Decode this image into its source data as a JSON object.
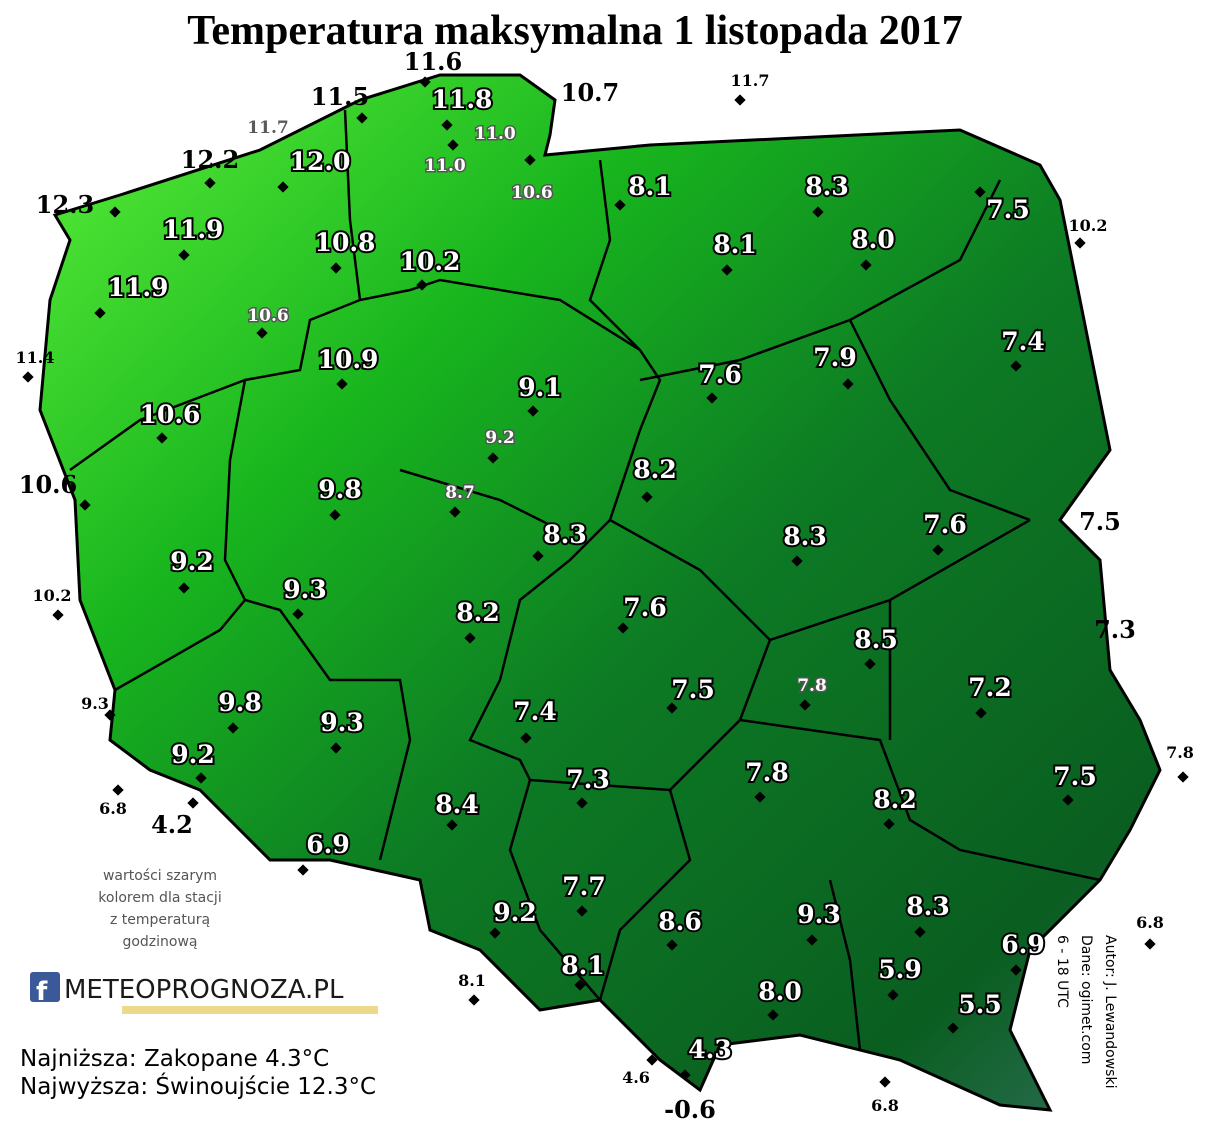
{
  "title": "Temperatura maksymalna 1 listopada 2017",
  "stations": [
    "11.6",
    "11.5",
    "10.7",
    "12.2",
    "12.3",
    "10.6",
    "7.5",
    "7.3",
    "4.2",
    "-0.6",
    "11.7",
    "10.2",
    "11.4",
    "10.2",
    "9.3",
    "6.8",
    "7.8",
    "6.8",
    "8.1",
    "4.6",
    "6.8",
    "11.7",
    "11.0",
    "11.0",
    "10.6",
    "10.6",
    "9.2",
    "8.7",
    "7.8",
    "11.8",
    "12.0",
    "11.9",
    "10.8",
    "10.2",
    "11.9",
    "10.9",
    "10.6",
    "9.8",
    "9.2",
    "9.3",
    "9.8",
    "9.3",
    "9.2",
    "6.9",
    "8.4",
    "9.2",
    "8.1",
    "8.3",
    "7.5",
    "8.1",
    "8.0",
    "7.4",
    "7.6",
    "7.9",
    "9.1",
    "8.2",
    "8.3",
    "8.3",
    "7.6",
    "8.2",
    "7.6",
    "8.5",
    "7.5",
    "7.2",
    "7.4",
    "7.3",
    "7.8",
    "8.2",
    "7.5",
    "7.7",
    "8.6",
    "9.3",
    "8.3",
    "6.9",
    "5.9",
    "8.1",
    "8.0",
    "5.5",
    "4.3"
  ],
  "note": [
    "wartości szarym",
    "kolorem dla stacji",
    "z temperaturą",
    "godzinową"
  ],
  "logo": "METEOPROGNOZA.PL",
  "credits": [
    "Autor: J. Lewandowski",
    "Dane: ogimet.com",
    "6 - 18 UTC"
  ],
  "summary": [
    "Najniższa: Zakopane 4.3°C",
    "Najwyższa: Świnoujście 12.3°C"
  ]
}
